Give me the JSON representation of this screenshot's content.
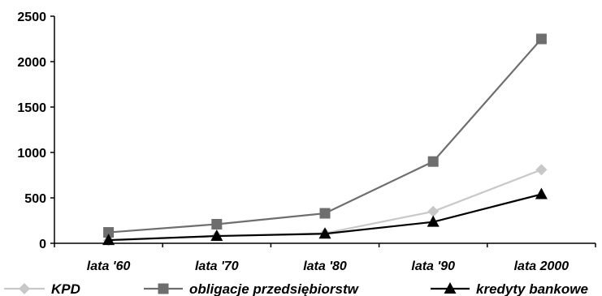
{
  "chart_data": {
    "type": "line",
    "title": "",
    "xlabel": "",
    "ylabel": "",
    "categories": [
      "lata '60",
      "lata '70",
      "lata '80",
      "lata '90",
      "lata 2000"
    ],
    "ylim": [
      0,
      2500
    ],
    "yticks": [
      0,
      500,
      1000,
      1500,
      2000,
      2500
    ],
    "grid": false,
    "legend_position": "bottom",
    "series": [
      {
        "name": "KPD",
        "values": [
          30,
          80,
          110,
          350,
          810
        ],
        "color": "#c8c8c8",
        "marker": "diamond"
      },
      {
        "name": "obligacje przedsiębiorstw",
        "values": [
          120,
          210,
          330,
          900,
          2250
        ],
        "color": "#6e6e6e",
        "marker": "square"
      },
      {
        "name": "kredyty bankowe",
        "values": [
          35,
          80,
          105,
          235,
          540
        ],
        "color": "#000000",
        "marker": "triangle"
      }
    ]
  }
}
